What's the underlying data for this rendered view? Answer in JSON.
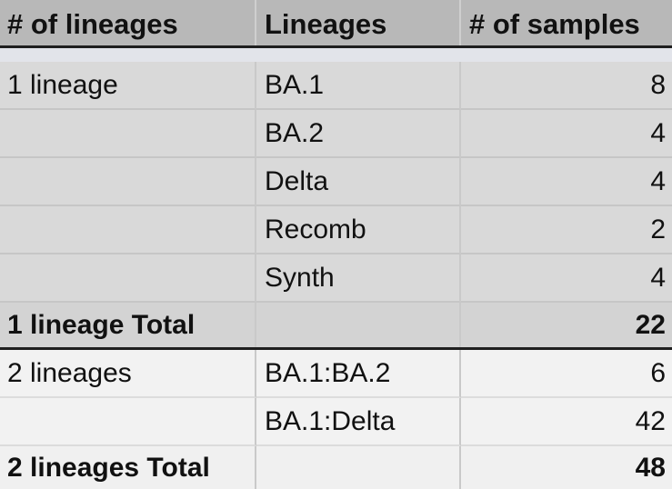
{
  "headers": [
    "# of lineages",
    "Lineages",
    "# of samples"
  ],
  "groups": [
    {
      "rows": [
        {
          "group": "1 lineage",
          "lineage": "BA.1",
          "count": "8"
        },
        {
          "group": "",
          "lineage": "BA.2",
          "count": "4"
        },
        {
          "group": "",
          "lineage": "Delta",
          "count": "4"
        },
        {
          "group": "",
          "lineage": "Recomb",
          "count": "2"
        },
        {
          "group": "",
          "lineage": "Synth",
          "count": "4"
        }
      ],
      "total": {
        "label": "1 lineage Total",
        "value": "22"
      }
    },
    {
      "rows": [
        {
          "group": "2 lineages",
          "lineage": "BA.1:BA.2",
          "count": "6"
        },
        {
          "group": "",
          "lineage": "BA.1:Delta",
          "count": "42"
        }
      ],
      "total": {
        "label": "2 lineages Total",
        "value": "48"
      }
    }
  ]
}
